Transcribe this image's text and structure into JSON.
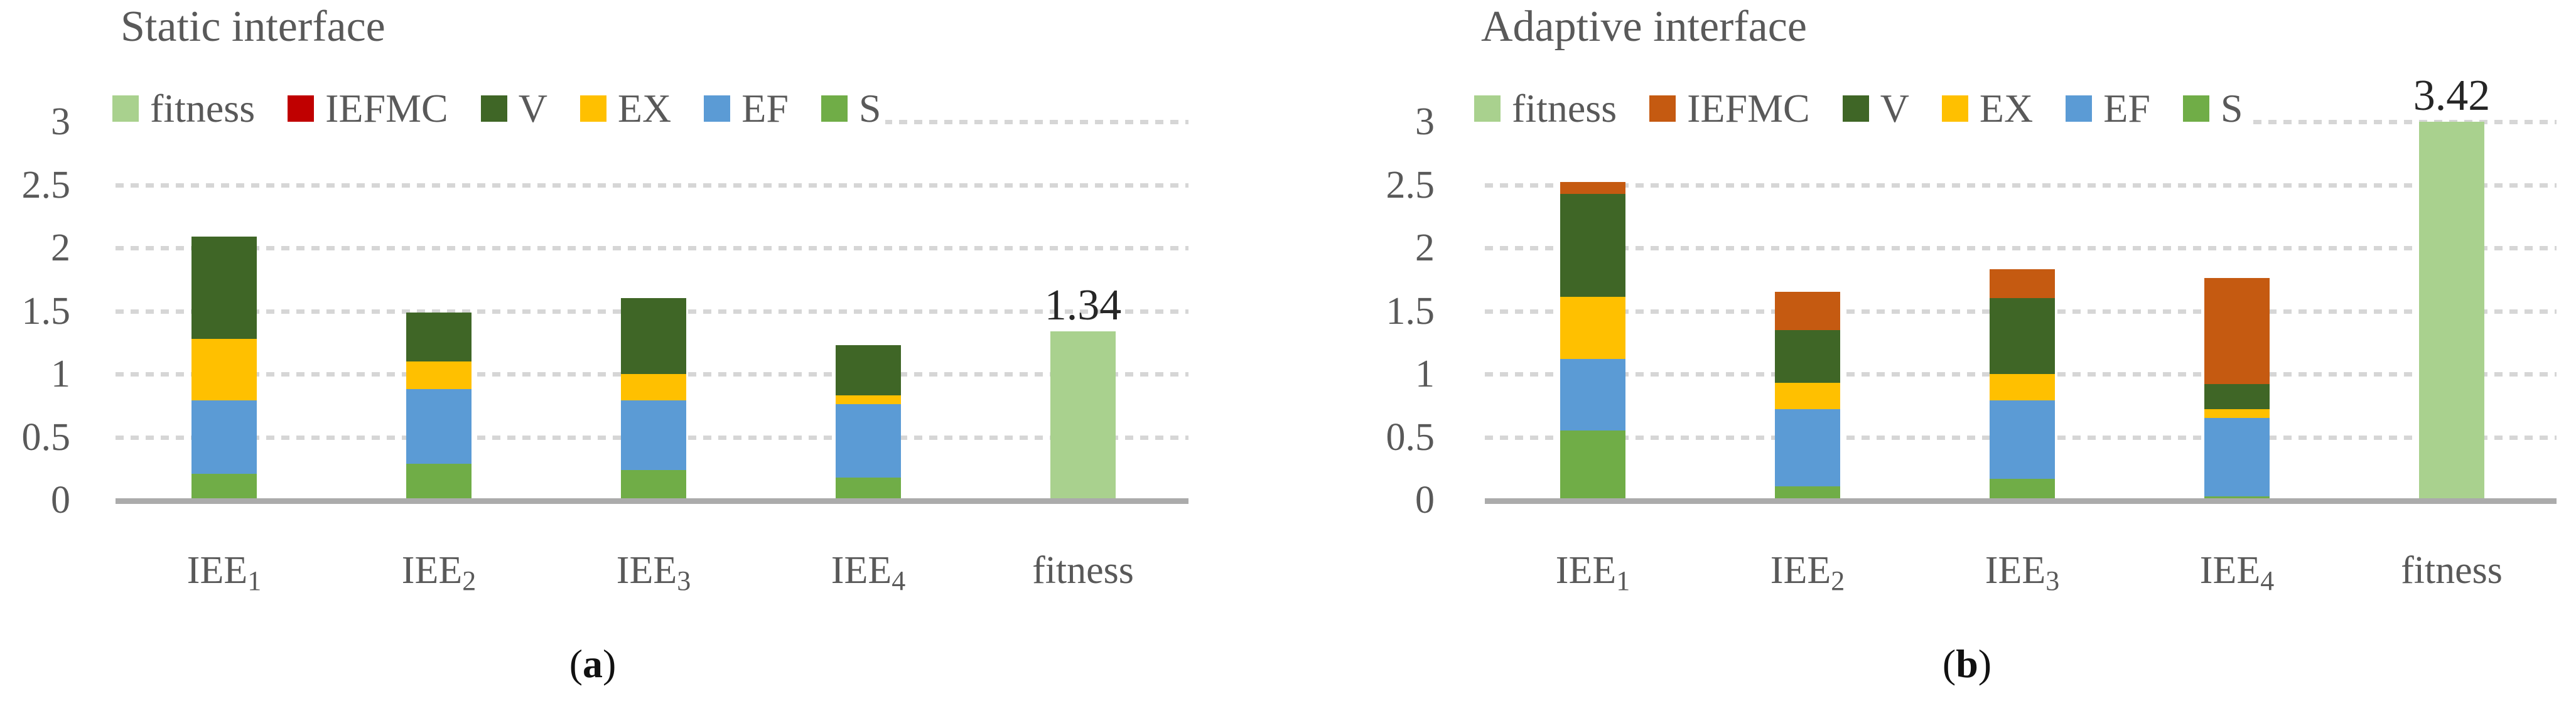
{
  "styles": {
    "background": "#ffffff",
    "text_color": "#595959",
    "data_label_color": "#262626",
    "grid_color": "#d6d6d6",
    "axis_line_color": "#ababab"
  },
  "chart_data": [
    {
      "panel": "a",
      "type": "bar",
      "stacked": true,
      "title": "Static interface",
      "caption_open": "(",
      "caption_letter": "a",
      "caption_close": ")",
      "xlabel": "",
      "ylabel": "",
      "ylim": [
        0,
        3
      ],
      "ytick_values": [
        3,
        2.5,
        2,
        1.5,
        1,
        0.5,
        0
      ],
      "ytick_labels": [
        "3",
        "2.5",
        "2",
        "1.5",
        "1",
        "0.5",
        "0"
      ],
      "grid": "horizontal-dashed",
      "legend_position": "top-left-inside",
      "categories": [
        {
          "base": "IEE",
          "sub": "1"
        },
        {
          "base": "IEE",
          "sub": "2"
        },
        {
          "base": "IEE",
          "sub": "3"
        },
        {
          "base": "IEE",
          "sub": "4"
        },
        {
          "base": "fitness",
          "sub": ""
        }
      ],
      "series": [
        {
          "name": "S",
          "color": "#70AD47",
          "values": [
            0.21,
            0.29,
            0.24,
            0.18,
            0
          ]
        },
        {
          "name": "EF",
          "color": "#5B9BD5",
          "values": [
            0.58,
            0.59,
            0.55,
            0.58,
            0
          ]
        },
        {
          "name": "EX",
          "color": "#FFC000",
          "values": [
            0.49,
            0.22,
            0.21,
            0.07,
            0
          ]
        },
        {
          "name": "V",
          "color": "#3F6626",
          "values": [
            0.81,
            0.39,
            0.6,
            0.4,
            0
          ]
        },
        {
          "name": "IEFMC",
          "color": "#C00000",
          "values": [
            0,
            0,
            0,
            0,
            0
          ]
        },
        {
          "name": "fitness",
          "color": "#A9D18E",
          "values": [
            0,
            0,
            0,
            0,
            1.34
          ]
        }
      ],
      "legend": [
        {
          "label": "fitness",
          "color": "#A9D18E"
        },
        {
          "label": "IEFMC",
          "color": "#C00000"
        },
        {
          "label": "V",
          "color": "#3F6626"
        },
        {
          "label": "EX",
          "color": "#FFC000"
        },
        {
          "label": "EF",
          "color": "#5B9BD5"
        },
        {
          "label": "S",
          "color": "#70AD47"
        }
      ],
      "bar_total_labels": [
        {
          "category_index": 4,
          "text": "1.34",
          "value": 1.34
        }
      ]
    },
    {
      "panel": "b",
      "type": "bar",
      "stacked": true,
      "title": "Adaptive interface",
      "caption_open": "(",
      "caption_letter": "b",
      "caption_close": ")",
      "xlabel": "",
      "ylabel": "",
      "ylim": [
        0,
        3
      ],
      "ytick_values": [
        3,
        2.5,
        2,
        1.5,
        1,
        0.5,
        0
      ],
      "ytick_labels": [
        "3",
        "2.5",
        "2",
        "1.5",
        "1",
        "0.5",
        "0"
      ],
      "grid": "horizontal-dashed",
      "legend_position": "top-left-inside",
      "categories": [
        {
          "base": "IEE",
          "sub": "1"
        },
        {
          "base": "IEE",
          "sub": "2"
        },
        {
          "base": "IEE",
          "sub": "3"
        },
        {
          "base": "IEE",
          "sub": "4"
        },
        {
          "base": "fitness",
          "sub": ""
        }
      ],
      "series": [
        {
          "name": "S",
          "color": "#70AD47",
          "values": [
            0.55,
            0.11,
            0.17,
            0.03,
            0
          ]
        },
        {
          "name": "EF",
          "color": "#5B9BD5",
          "values": [
            0.57,
            0.61,
            0.62,
            0.62,
            0
          ]
        },
        {
          "name": "EX",
          "color": "#FFC000",
          "values": [
            0.49,
            0.21,
            0.21,
            0.07,
            0
          ]
        },
        {
          "name": "V",
          "color": "#3F6626",
          "values": [
            0.82,
            0.42,
            0.6,
            0.2,
            0
          ]
        },
        {
          "name": "IEFMC",
          "color": "#C55A11",
          "values": [
            0.09,
            0.3,
            0.23,
            0.84,
            0
          ]
        },
        {
          "name": "fitness",
          "color": "#A9D18E",
          "values": [
            0,
            0,
            0,
            0,
            3.42
          ]
        }
      ],
      "legend": [
        {
          "label": "fitness",
          "color": "#A9D18E"
        },
        {
          "label": "IEFMC",
          "color": "#C55A11"
        },
        {
          "label": "V",
          "color": "#3F6626"
        },
        {
          "label": "EX",
          "color": "#FFC000"
        },
        {
          "label": "EF",
          "color": "#5B9BD5"
        },
        {
          "label": "S",
          "color": "#70AD47"
        }
      ],
      "bar_total_labels": [
        {
          "category_index": 4,
          "text": "3.42",
          "value": 3.42
        }
      ]
    }
  ]
}
